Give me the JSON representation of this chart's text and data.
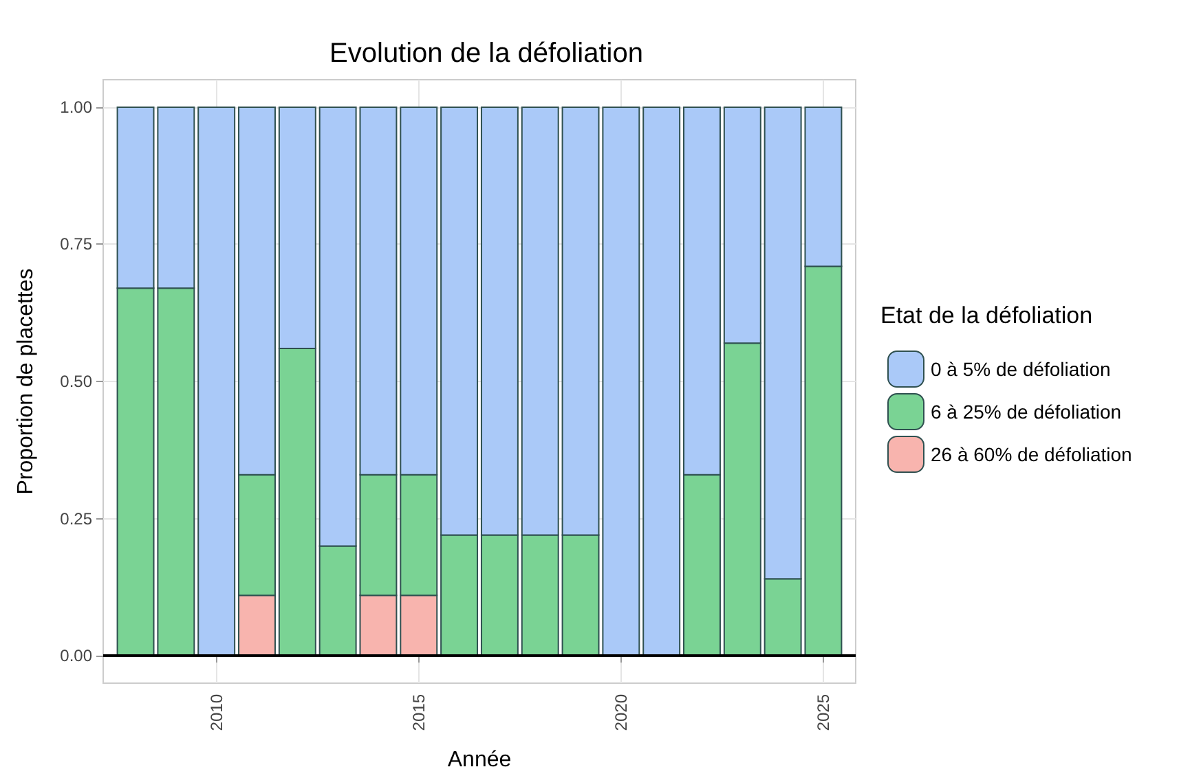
{
  "chart_data": {
    "type": "bar",
    "stacked": true,
    "title": "Evolution de la défoliation",
    "xlabel": "Année",
    "ylabel": "Proportion de placettes",
    "legend_title": "Etat de la défoliation",
    "x": [
      2008,
      2009,
      2010,
      2011,
      2012,
      2013,
      2014,
      2015,
      2016,
      2017,
      2018,
      2019,
      2020,
      2021,
      2022,
      2023,
      2024,
      2025
    ],
    "series": [
      {
        "name": "26 à 60% de défoliation",
        "color": "#f8b4ae",
        "values": [
          null,
          null,
          null,
          0.11,
          null,
          null,
          0.11,
          0.11,
          null,
          null,
          null,
          null,
          null,
          null,
          null,
          null,
          null,
          null
        ]
      },
      {
        "name": "6 à 25% de défoliation",
        "color": "#7ad394",
        "values": [
          0.67,
          0.67,
          null,
          0.22,
          0.56,
          0.2,
          0.22,
          0.22,
          0.22,
          0.22,
          0.22,
          0.22,
          null,
          null,
          0.33,
          0.57,
          0.14,
          0.71
        ]
      },
      {
        "name": "0 à 5% de défoliation",
        "color": "#aac9f8",
        "values": [
          0.33,
          0.33,
          1,
          0.67,
          0.44,
          0.8,
          0.67,
          0.67,
          0.78,
          0.78,
          0.78,
          0.78,
          1,
          1,
          0.67,
          0.43,
          0.86,
          0.29
        ]
      }
    ],
    "xlim": [
      2007.2,
      2025.8
    ],
    "xticks": [
      2010,
      2015,
      2020,
      2025
    ],
    "ylim": [
      -0.05,
      1.05
    ],
    "yticks": [
      {
        "value": 0,
        "label": "0.00"
      },
      {
        "value": 0.25,
        "label": "0.25"
      },
      {
        "value": 0.5,
        "label": "0.50"
      },
      {
        "value": 0.75,
        "label": "0.75"
      },
      {
        "value": 1,
        "label": "1.00"
      }
    ],
    "ref_lines": [
      {
        "axis": "y",
        "value": 0,
        "color": "#000000"
      }
    ],
    "grid": true,
    "legend": "right"
  }
}
